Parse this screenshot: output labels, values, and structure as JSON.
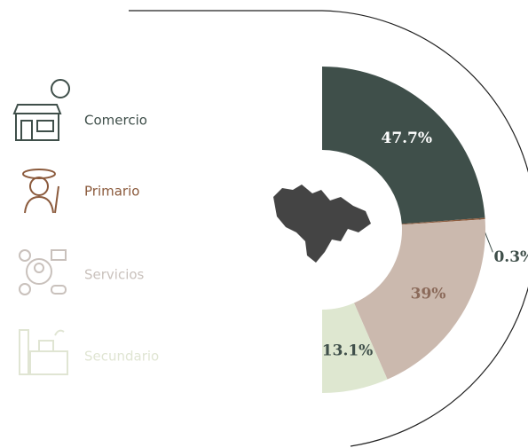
{
  "chart_data": {
    "type": "pie",
    "categories": [
      "Comercio",
      "Primario",
      "Servicios",
      "Secundario"
    ],
    "values": [
      47.7,
      0.3,
      39,
      13.1
    ],
    "value_labels": [
      "47.7%",
      "0.3%",
      "39%",
      "13.1%"
    ],
    "colors": [
      "#3f4f4a",
      "#8b5a3c",
      "#cbb9ae",
      "#dee7d0"
    ],
    "label_colors": [
      "#3f4f4a",
      "#8b5a3c",
      "#c9c1bc",
      "#e0e5d3"
    ]
  }
}
